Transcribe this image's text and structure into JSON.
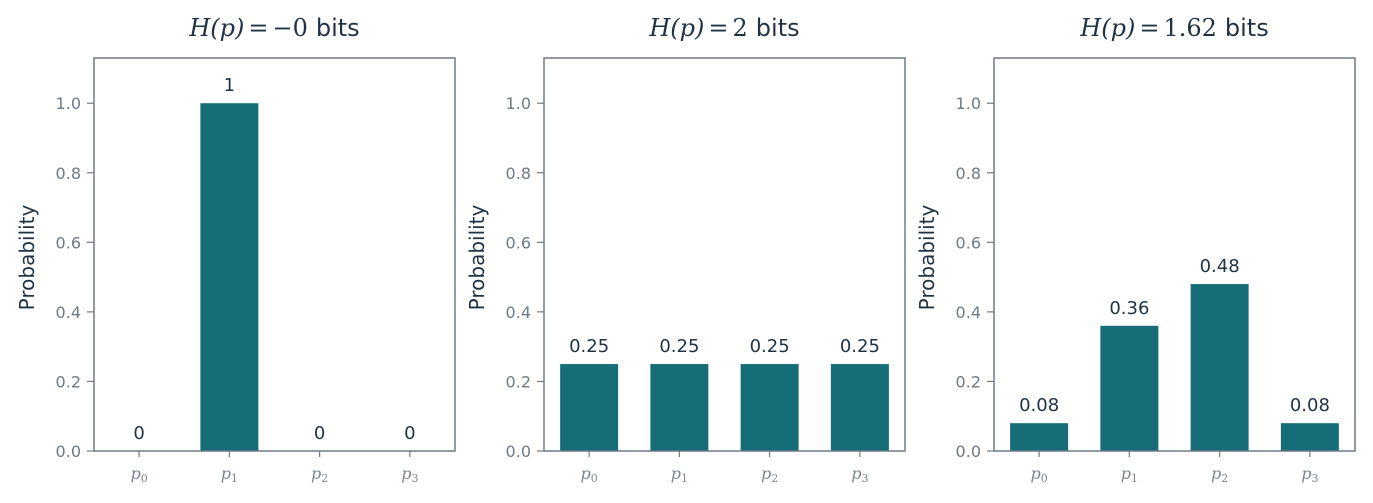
{
  "colors": {
    "bar": "#176d77",
    "axis": "#6e7a85",
    "text": "#1f3344"
  },
  "chart_data": [
    {
      "type": "bar",
      "title": "H(p) = −0 bits",
      "title_parts": {
        "lhs": "H(p)",
        "eq": "=",
        "value": "−0",
        "unit": "bits"
      },
      "categories": [
        "p0",
        "p1",
        "p2",
        "p3"
      ],
      "values": [
        0,
        1,
        0,
        0
      ],
      "data_labels": [
        "0",
        "1",
        "0",
        "0"
      ],
      "ylabel": "Probability",
      "ylim": [
        0,
        1.13
      ],
      "yticks": [
        0.0,
        0.2,
        0.4,
        0.6,
        0.8,
        1.0
      ],
      "ytick_labels": [
        "0.0",
        "0.2",
        "0.4",
        "0.6",
        "0.8",
        "1.0"
      ],
      "grid": false
    },
    {
      "type": "bar",
      "title": "H(p) = 2 bits",
      "title_parts": {
        "lhs": "H(p)",
        "eq": "=",
        "value": "2",
        "unit": "bits"
      },
      "categories": [
        "p0",
        "p1",
        "p2",
        "p3"
      ],
      "values": [
        0.25,
        0.25,
        0.25,
        0.25
      ],
      "data_labels": [
        "0.25",
        "0.25",
        "0.25",
        "0.25"
      ],
      "ylabel": "Probability",
      "ylim": [
        0,
        1.13
      ],
      "yticks": [
        0.0,
        0.2,
        0.4,
        0.6,
        0.8,
        1.0
      ],
      "ytick_labels": [
        "0.0",
        "0.2",
        "0.4",
        "0.6",
        "0.8",
        "1.0"
      ],
      "grid": false
    },
    {
      "type": "bar",
      "title": "H(p) = 1.62 bits",
      "title_parts": {
        "lhs": "H(p)",
        "eq": "=",
        "value": "1.62",
        "unit": "bits"
      },
      "categories": [
        "p0",
        "p1",
        "p2",
        "p3"
      ],
      "values": [
        0.08,
        0.36,
        0.48,
        0.08
      ],
      "data_labels": [
        "0.08",
        "0.36",
        "0.48",
        "0.08"
      ],
      "ylabel": "Probability",
      "ylim": [
        0,
        1.13
      ],
      "yticks": [
        0.0,
        0.2,
        0.4,
        0.6,
        0.8,
        1.0
      ],
      "ytick_labels": [
        "0.0",
        "0.2",
        "0.4",
        "0.6",
        "0.8",
        "1.0"
      ],
      "grid": false
    }
  ]
}
